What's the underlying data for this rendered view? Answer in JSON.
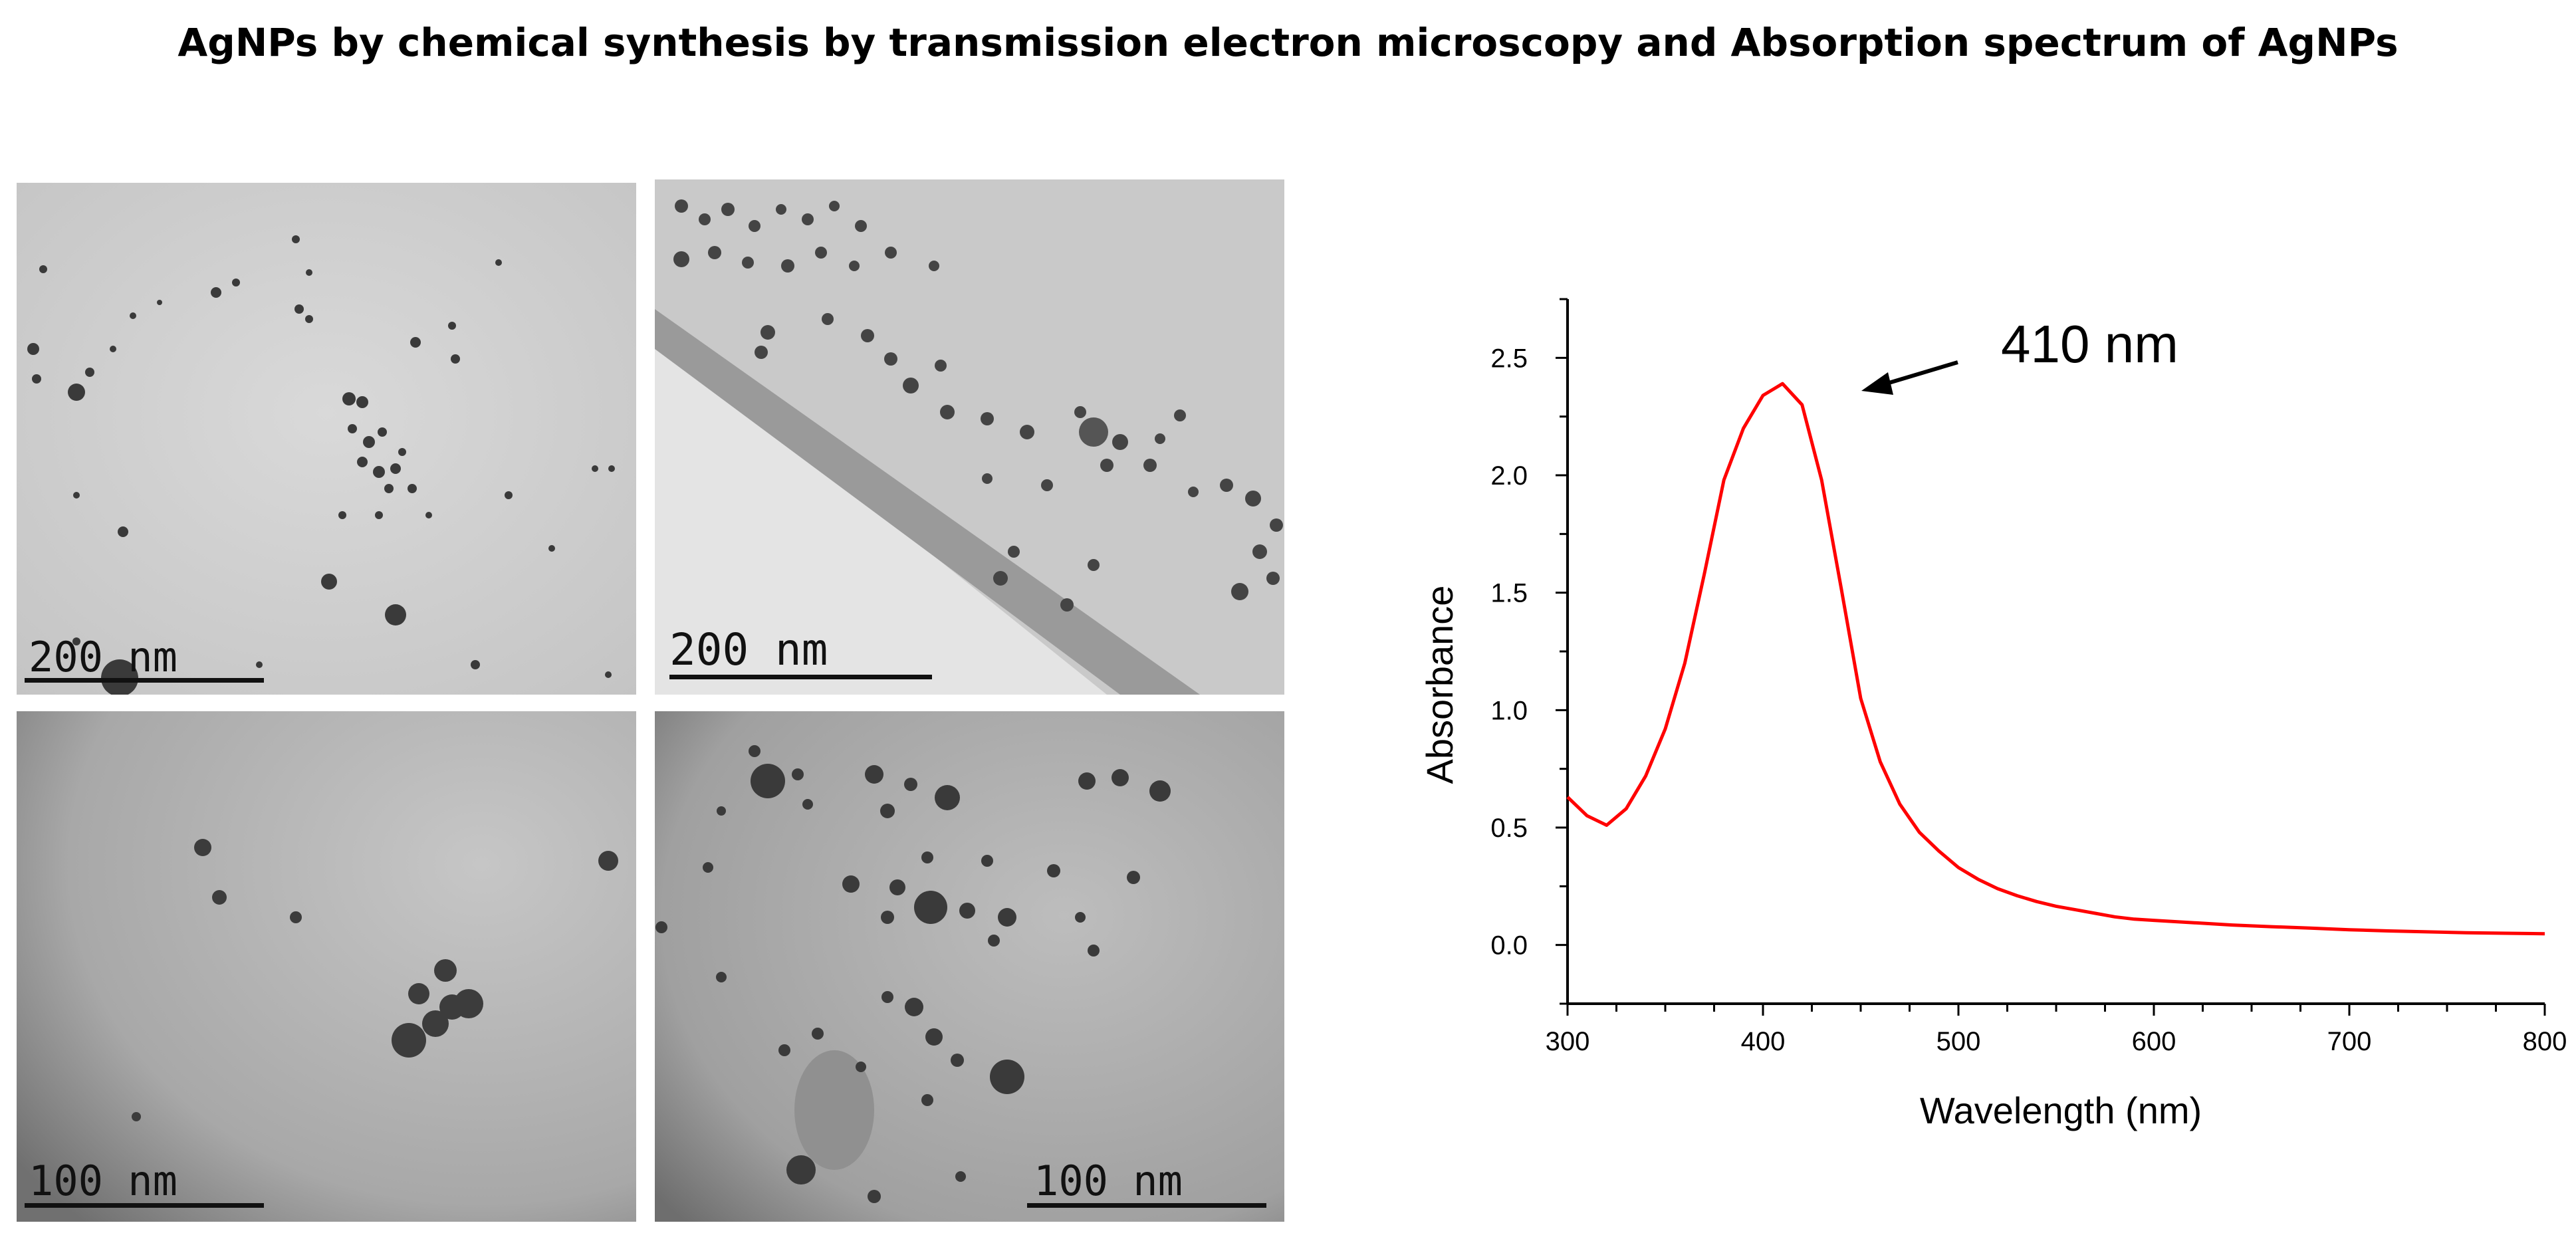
{
  "figure": {
    "title": "AgNPs by chemical synthesis by transmission  electron microscopy and Absorption spectrum of AgNPs"
  },
  "tem_panels": [
    {
      "scale_label": "200 nm"
    },
    {
      "scale_label": "200 nm"
    },
    {
      "scale_label": "100 nm"
    },
    {
      "scale_label": "100 nm"
    }
  ],
  "chart_data": {
    "type": "line",
    "xlabel": "Wavelength (nm)",
    "ylabel": "Absorbance",
    "xlim": [
      300,
      800
    ],
    "ylim": [
      -0.25,
      2.75
    ],
    "x_ticks": [
      300,
      400,
      500,
      600,
      700,
      800
    ],
    "y_ticks": [
      "0.0",
      "0.5",
      "1.0",
      "1.5",
      "2.0",
      "2.5"
    ],
    "grid": false,
    "series_color": "#ff0000",
    "annotation": {
      "text": "410 nm",
      "peak_x": 410,
      "peak_y": 2.39
    },
    "series": [
      {
        "x": [
          300,
          310,
          320,
          330,
          340,
          350,
          360,
          370,
          380,
          390,
          400,
          410,
          420,
          430,
          440,
          450,
          460,
          470,
          480,
          490,
          500,
          510,
          520,
          530,
          540,
          550,
          560,
          570,
          580,
          590,
          600,
          620,
          640,
          660,
          680,
          700,
          720,
          740,
          760,
          780,
          800
        ],
        "y": [
          0.63,
          0.55,
          0.51,
          0.58,
          0.72,
          0.92,
          1.2,
          1.58,
          1.98,
          2.2,
          2.34,
          2.39,
          2.3,
          1.98,
          1.52,
          1.05,
          0.78,
          0.6,
          0.48,
          0.4,
          0.33,
          0.28,
          0.24,
          0.21,
          0.185,
          0.165,
          0.15,
          0.135,
          0.12,
          0.11,
          0.105,
          0.095,
          0.085,
          0.078,
          0.072,
          0.065,
          0.06,
          0.056,
          0.052,
          0.05,
          0.048
        ]
      }
    ]
  }
}
